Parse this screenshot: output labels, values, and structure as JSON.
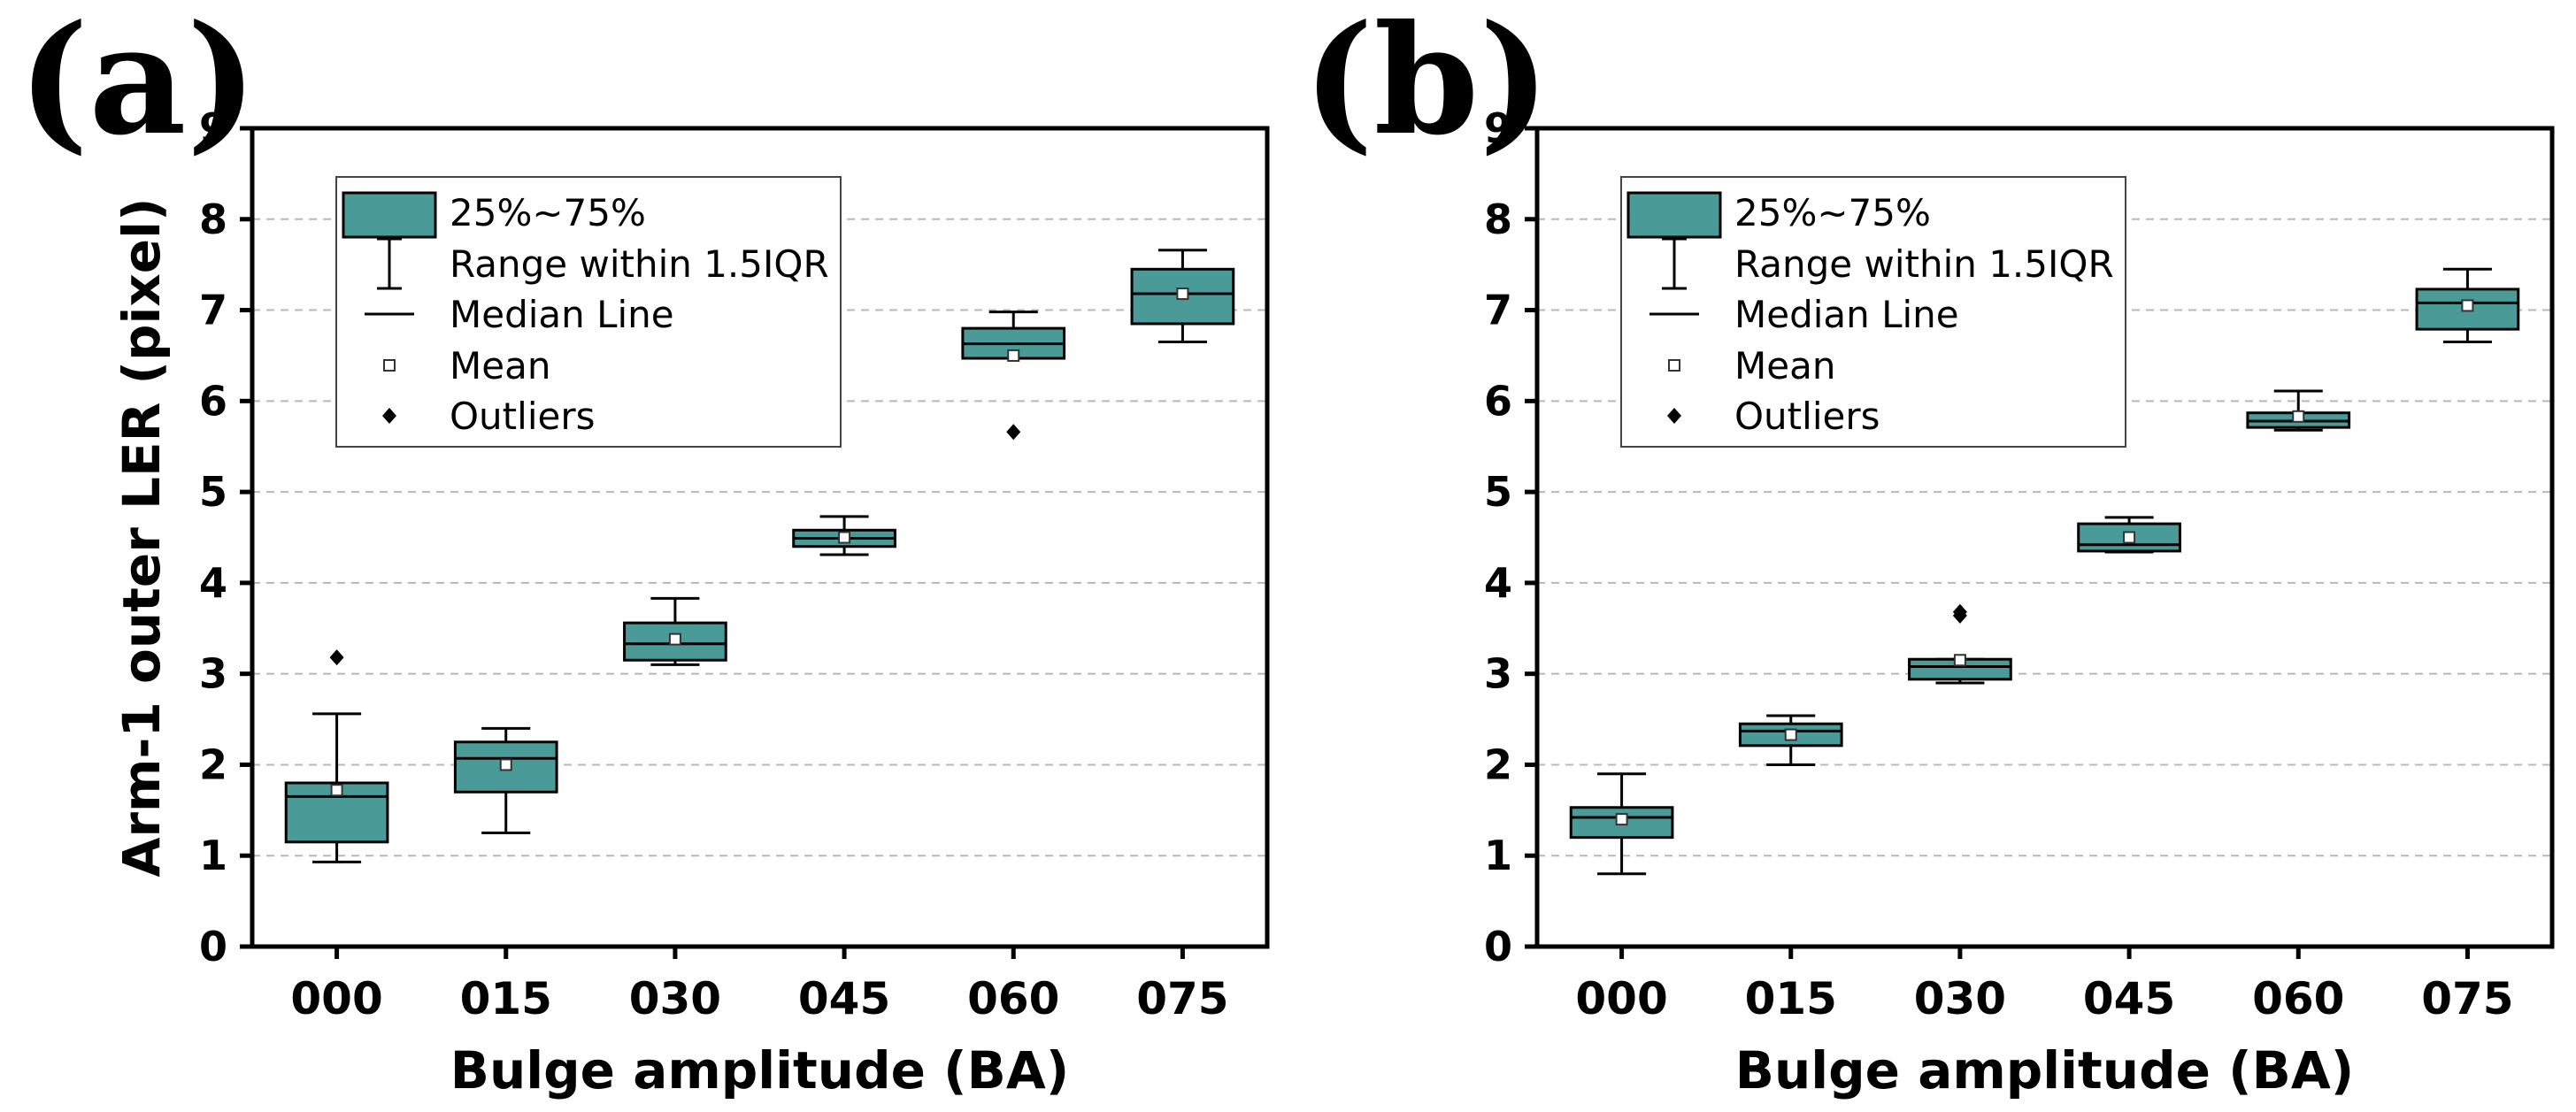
{
  "chart_data": [
    {
      "panel_label": "(a)",
      "type": "box",
      "xlabel": "Bulge amplitude (BA)",
      "ylabel": "Arm-1 outer LER (pixel)",
      "ylim": [
        0,
        9
      ],
      "yticks": [
        "0",
        "1",
        "2",
        "3",
        "4",
        "5",
        "6",
        "7",
        "8",
        "9"
      ],
      "grid": "horizontal dashed",
      "categories": [
        "000",
        "015",
        "030",
        "045",
        "060",
        "075"
      ],
      "boxes": [
        {
          "q1": 1.15,
          "median": 1.65,
          "q3": 1.8,
          "whisker_low": 0.93,
          "whisker_high": 2.56,
          "mean": 1.72,
          "outliers": [
            3.18
          ]
        },
        {
          "q1": 1.7,
          "median": 2.07,
          "q3": 2.25,
          "whisker_low": 1.25,
          "whisker_high": 2.4,
          "mean": 2.0,
          "outliers": []
        },
        {
          "q1": 3.15,
          "median": 3.33,
          "q3": 3.56,
          "whisker_low": 3.1,
          "whisker_high": 3.83,
          "mean": 3.38,
          "outliers": []
        },
        {
          "q1": 4.4,
          "median": 4.49,
          "q3": 4.58,
          "whisker_low": 4.31,
          "whisker_high": 4.73,
          "mean": 4.5,
          "outliers": []
        },
        {
          "q1": 6.47,
          "median": 6.63,
          "q3": 6.8,
          "whisker_low": 6.47,
          "whisker_high": 6.98,
          "mean": 6.5,
          "outliers": [
            5.66
          ]
        },
        {
          "q1": 6.85,
          "median": 7.18,
          "q3": 7.45,
          "whisker_low": 6.65,
          "whisker_high": 7.66,
          "mean": 7.18,
          "outliers": []
        }
      ]
    },
    {
      "panel_label": "(b)",
      "type": "box",
      "xlabel": "Bulge amplitude (BA)",
      "ylabel": "",
      "ylim": [
        0,
        9
      ],
      "yticks": [
        "0",
        "1",
        "2",
        "3",
        "4",
        "5",
        "6",
        "7",
        "8",
        "9"
      ],
      "grid": "horizontal dashed",
      "categories": [
        "000",
        "015",
        "030",
        "045",
        "060",
        "075"
      ],
      "boxes": [
        {
          "q1": 1.2,
          "median": 1.42,
          "q3": 1.53,
          "whisker_low": 0.8,
          "whisker_high": 1.9,
          "mean": 1.4,
          "outliers": []
        },
        {
          "q1": 2.21,
          "median": 2.37,
          "q3": 2.45,
          "whisker_low": 2.0,
          "whisker_high": 2.54,
          "mean": 2.33,
          "outliers": []
        },
        {
          "q1": 2.94,
          "median": 3.08,
          "q3": 3.16,
          "whisker_low": 2.9,
          "whisker_high": 3.16,
          "mean": 3.15,
          "outliers": [
            3.64,
            3.68
          ]
        },
        {
          "q1": 4.35,
          "median": 4.42,
          "q3": 4.65,
          "whisker_low": 4.34,
          "whisker_high": 4.72,
          "mean": 4.5,
          "outliers": []
        },
        {
          "q1": 5.71,
          "median": 5.78,
          "q3": 5.87,
          "whisker_low": 5.68,
          "whisker_high": 6.11,
          "mean": 5.83,
          "outliers": []
        },
        {
          "q1": 6.79,
          "median": 7.08,
          "q3": 7.23,
          "whisker_low": 6.65,
          "whisker_high": 7.45,
          "mean": 7.05,
          "outliers": []
        }
      ]
    }
  ],
  "legend": {
    "items": [
      "25%~75%",
      "Range within 1.5IQR",
      "Median Line",
      "Mean",
      "Outliers"
    ]
  },
  "colors": {
    "box_fill": "#4a9a98",
    "stroke": "#000000",
    "grid": "#b8b8b8"
  }
}
